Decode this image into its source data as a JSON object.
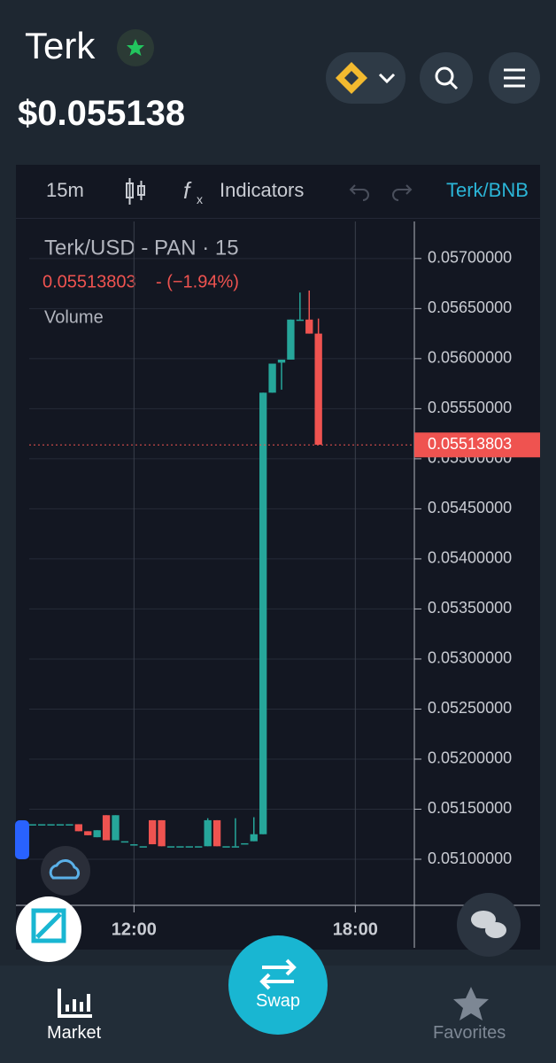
{
  "header": {
    "token": "Terk",
    "price": "$0.055138"
  },
  "toolbar": {
    "interval": "15m",
    "indicators": "Indicators",
    "pair": "Terk/BNB"
  },
  "nav": {
    "market": "Market",
    "swap": "Swap",
    "favorites": "Favorites"
  },
  "chart_data": {
    "type": "candlestick",
    "title": "Terk/USD - PAN · 15",
    "change": "- (−1.94%)",
    "volume_label": "Volume",
    "last_price": 0.05513803,
    "up_color": "#26a69a",
    "down_color": "#ef5350",
    "x": [
      9.25,
      9.5,
      9.75,
      10,
      10.25,
      10.5,
      10.75,
      11,
      11.25,
      11.5,
      11.75,
      12,
      12.25,
      12.5,
      12.75,
      13,
      13.25,
      13.5,
      13.75,
      14,
      14.25,
      14.5,
      14.75,
      15,
      15.25,
      15.5,
      15.75,
      16,
      16.25,
      16.5,
      16.75,
      17
    ],
    "open": [
      0.05135,
      0.05135,
      0.05135,
      0.05135,
      0.05135,
      0.05135,
      0.05128,
      0.05122,
      0.05144,
      0.05119,
      0.05118,
      0.05115,
      0.05113,
      0.05139,
      0.05139,
      0.05113,
      0.05113,
      0.05113,
      0.05113,
      0.05113,
      0.05139,
      0.05113,
      0.05113,
      0.05116,
      0.05118,
      0.05125,
      0.05566,
      0.05596,
      0.05599,
      0.05639,
      0.05639,
      0.05625
    ],
    "high": [
      0.05135,
      0.05135,
      0.05135,
      0.05135,
      0.05135,
      0.05135,
      0.05128,
      0.05129,
      0.05144,
      0.05144,
      0.05118,
      0.05115,
      0.05113,
      0.05139,
      0.05139,
      0.05113,
      0.05113,
      0.05113,
      0.05113,
      0.05141,
      0.05139,
      0.05113,
      0.05141,
      0.05116,
      0.05142,
      0.05566,
      0.05595,
      0.05599,
      0.05639,
      0.05666,
      0.05668,
      0.0564
    ],
    "low": [
      0.05135,
      0.05135,
      0.05135,
      0.05135,
      0.05135,
      0.05128,
      0.05124,
      0.05122,
      0.05119,
      0.05119,
      0.05118,
      0.05115,
      0.05113,
      0.05115,
      0.05113,
      0.05113,
      0.05113,
      0.05113,
      0.05113,
      0.05113,
      0.05113,
      0.05113,
      0.05113,
      0.05116,
      0.05118,
      0.05125,
      0.05566,
      0.05569,
      0.05599,
      0.05639,
      0.05625,
      0.05514
    ],
    "close": [
      0.05135,
      0.05135,
      0.05135,
      0.05135,
      0.05135,
      0.05128,
      0.05124,
      0.05129,
      0.05119,
      0.05144,
      0.05118,
      0.05115,
      0.05113,
      0.05115,
      0.05113,
      0.05113,
      0.05113,
      0.05113,
      0.05113,
      0.05139,
      0.05113,
      0.05113,
      0.05113,
      0.05116,
      0.05125,
      0.05566,
      0.05595,
      0.05599,
      0.05639,
      0.05639,
      0.05625,
      0.05514
    ],
    "xlim": [
      8.8,
      19.6
    ],
    "xticks": [
      {
        "value": 12,
        "label": "12:00"
      },
      {
        "value": 18,
        "label": "18:00"
      }
    ],
    "ylim": [
      0.05054,
      0.05737
    ],
    "yticks": [
      {
        "value": 0.057,
        "label": "0.05700000"
      },
      {
        "value": 0.0565,
        "label": "0.05650000"
      },
      {
        "value": 0.056,
        "label": "0.05600000"
      },
      {
        "value": 0.0555,
        "label": "0.05550000"
      },
      {
        "value": 0.055,
        "label": "0.05500000"
      },
      {
        "value": 0.0545,
        "label": "0.05450000"
      },
      {
        "value": 0.054,
        "label": "0.05400000"
      },
      {
        "value": 0.0535,
        "label": "0.05350000"
      },
      {
        "value": 0.053,
        "label": "0.05300000"
      },
      {
        "value": 0.0525,
        "label": "0.05250000"
      },
      {
        "value": 0.052,
        "label": "0.05200000"
      },
      {
        "value": 0.0515,
        "label": "0.05150000"
      },
      {
        "value": 0.051,
        "label": "0.05100000"
      }
    ],
    "grid": true
  }
}
